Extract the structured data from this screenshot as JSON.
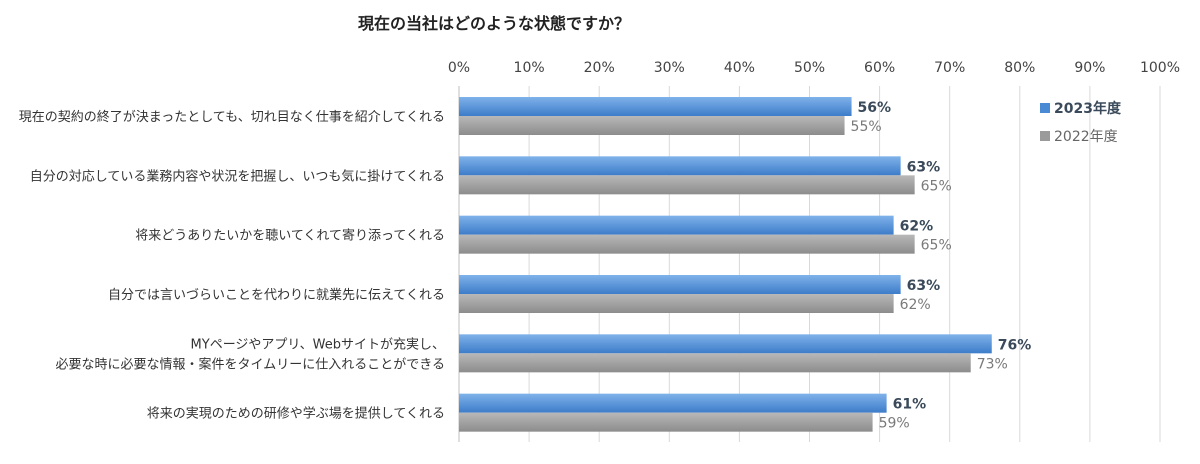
{
  "chart_data": {
    "type": "bar",
    "orientation": "horizontal",
    "title": "現在の当社はどのような状態ですか？",
    "xlim": [
      0,
      100
    ],
    "ticks": [
      "0%",
      "10%",
      "20%",
      "30%",
      "40%",
      "50%",
      "60%",
      "70%",
      "80%",
      "90%",
      "100%"
    ],
    "grid": true,
    "legend_position": "right",
    "categories": [
      [
        "現在の契約の終了が決まったとしても、切れ目なく仕事を紹介してくれる"
      ],
      [
        "自分の対応している業務内容や状況を把握し、いつも気に掛けてくれる"
      ],
      [
        "将来どうありたいかを聴いてくれて寄り添ってくれる"
      ],
      [
        "自分では言いづらいことを代わりに就業先に伝えてくれる"
      ],
      [
        "MYページやアプリ、Webサイトが充実し、",
        "必要な時に必要な情報・案件をタイムリーに仕入れることができる"
      ],
      [
        "将来の実現のための研修や学ぶ場を提供してくれる"
      ]
    ],
    "series": [
      {
        "name": "2023年度",
        "color": "#4a8ad4",
        "values": [
          56,
          63,
          62,
          63,
          76,
          61
        ],
        "labels": [
          "56%",
          "63%",
          "62%",
          "63%",
          "76%",
          "61%"
        ]
      },
      {
        "name": "2022年度",
        "color": "#9a9a9a",
        "values": [
          55,
          65,
          65,
          62,
          73,
          59
        ],
        "labels": [
          "55%",
          "65%",
          "65%",
          "62%",
          "73%",
          "59%"
        ]
      }
    ]
  }
}
